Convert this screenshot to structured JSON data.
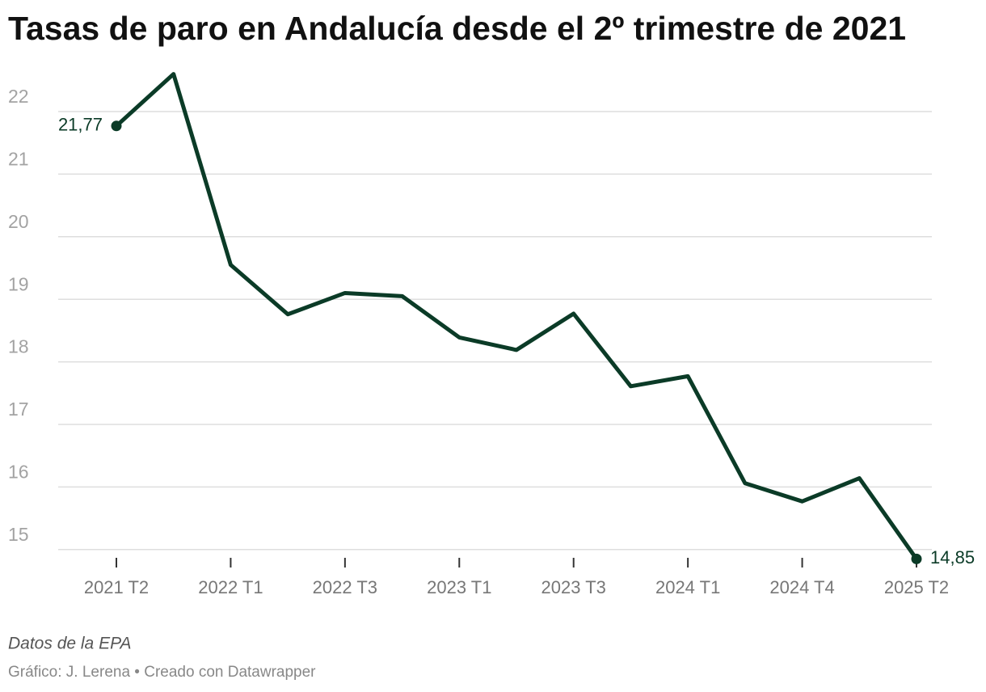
{
  "chart_data": {
    "type": "line",
    "title": "Tasas de paro en Andalucía desde el 2º trimestre de 2021",
    "categories": [
      "2021 T2",
      null,
      "2022 T1",
      null,
      "2022 T3",
      null,
      "2023 T1",
      null,
      "2023 T3",
      null,
      "2024 T1",
      null,
      "2024 T4",
      null,
      "2025 T2"
    ],
    "series": [
      {
        "name": "Tasa de paro",
        "color": "#0b3b27",
        "values": [
          21.77,
          22.6,
          19.55,
          18.76,
          19.1,
          19.05,
          18.39,
          18.19,
          18.77,
          17.61,
          17.77,
          16.06,
          15.77,
          16.14,
          14.85
        ],
        "value_labels": [
          "21,77",
          null,
          null,
          null,
          null,
          null,
          null,
          null,
          null,
          null,
          null,
          null,
          null,
          null,
          "14,85"
        ]
      }
    ],
    "ylim": [
      14.7,
      22.65
    ],
    "yticks": [
      15,
      16,
      17,
      18,
      19,
      20,
      21,
      22
    ],
    "grid": true,
    "source": "Datos de la EPA",
    "credit": "Gráfico: J. Lerena • Creado con Datawrapper"
  }
}
